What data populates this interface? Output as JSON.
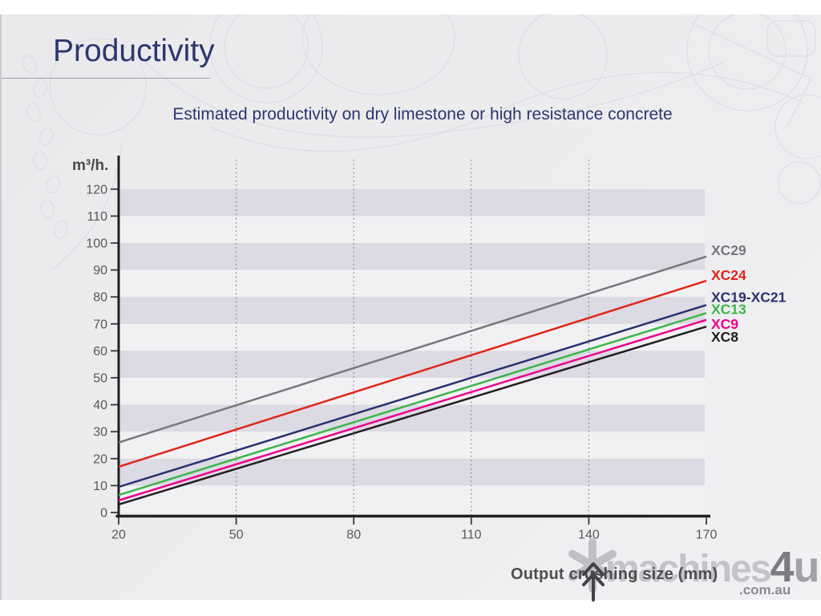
{
  "page": {
    "title": "Productivity"
  },
  "subtitle": "Estimated productivity on dry limestone or high resistance concrete",
  "watermark": {
    "logo_icon": "asterisk-star-logo",
    "name": "machines",
    "suffix_4": "4",
    "suffix_u": "u",
    "domain": ".com.au"
  },
  "cursor_icon": "double-chevron-up-pointer",
  "chart_data": {
    "type": "line",
    "title": "Estimated productivity on dry limestone or high resistance concrete",
    "ylabel": "m³/h.",
    "xlabel": "Output crushing size (mm)",
    "xlim": [
      20,
      170
    ],
    "ylim": [
      0,
      120
    ],
    "x_ticks": [
      20,
      50,
      80,
      110,
      140,
      170
    ],
    "y_ticks": [
      0,
      10,
      20,
      30,
      40,
      50,
      60,
      70,
      80,
      90,
      100,
      110,
      120
    ],
    "x": [
      20,
      170
    ],
    "series": [
      {
        "name": "XC29",
        "color": "#77787b",
        "values": [
          26,
          95
        ]
      },
      {
        "name": "XC24",
        "color": "#e1251b",
        "values": [
          17,
          86
        ]
      },
      {
        "name": "XC19-XC21",
        "color": "#2b3270",
        "values": [
          9.5,
          77
        ]
      },
      {
        "name": "XC13",
        "color": "#3db54a",
        "values": [
          6.5,
          74
        ]
      },
      {
        "name": "XC9",
        "color": "#ec008c",
        "values": [
          4.5,
          71.5
        ]
      },
      {
        "name": "XC8",
        "color": "#231f20",
        "values": [
          3,
          69
        ]
      }
    ],
    "grid": {
      "vertical_dotted_x": [
        50,
        80,
        110,
        140
      ],
      "band_ranges": [
        [
          10,
          20
        ],
        [
          30,
          40
        ],
        [
          50,
          60
        ],
        [
          70,
          80
        ],
        [
          90,
          100
        ],
        [
          110,
          120
        ]
      ],
      "band_color": "#dcdbe4",
      "plot_bg_color": "#f1f1f4"
    },
    "legend_position": "right of line ends",
    "axis_color": "#231f20",
    "tick_label_color": "#57585a"
  }
}
